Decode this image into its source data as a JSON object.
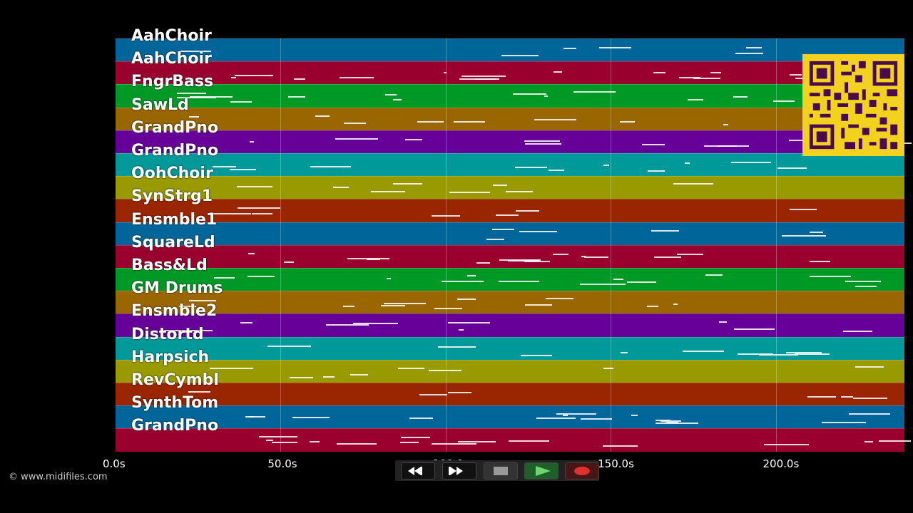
{
  "tracks": [
    {
      "label": "AahChoir",
      "color": "#006699"
    },
    {
      "label": "AahChoir",
      "color": "#99002e"
    },
    {
      "label": "FngrBass",
      "color": "#009926"
    },
    {
      "label": "SawLd",
      "color": "#996600"
    },
    {
      "label": "GrandPno",
      "color": "#660099"
    },
    {
      "label": "GrandPno",
      "color": "#009999"
    },
    {
      "label": "OohChoir",
      "color": "#999900"
    },
    {
      "label": "SynStrg1",
      "color": "#992600"
    },
    {
      "label": "Ensmble1",
      "color": "#006699"
    },
    {
      "label": "SquareLd",
      "color": "#99002e"
    },
    {
      "label": "Bass&Ld",
      "color": "#009926"
    },
    {
      "label": "GM Drums",
      "color": "#996600"
    },
    {
      "label": "Ensmble2",
      "color": "#660099"
    },
    {
      "label": "Distortd",
      "color": "#009999"
    },
    {
      "label": "Harpsich",
      "color": "#999900"
    },
    {
      "label": "RevCymbl",
      "color": "#992600"
    },
    {
      "label": "SynthTom",
      "color": "#006699"
    },
    {
      "label": "GrandPno",
      "color": "#99002e"
    }
  ],
  "timeline": {
    "ticks": [
      "0.0s",
      "50.0s",
      "100.0s",
      "150.0s",
      "200.0s"
    ],
    "tick_seconds": [
      0,
      50,
      100,
      150,
      200
    ],
    "max_seconds": 239
  },
  "copyright": "© www.midifiles.com",
  "transport": {
    "rewind_icon": "rewind-icon",
    "fastforward_icon": "fast-forward-icon",
    "stop_icon": "stop-icon",
    "play_icon": "play-icon",
    "record_icon": "record-icon"
  },
  "qr_icon": "qr-code-icon"
}
